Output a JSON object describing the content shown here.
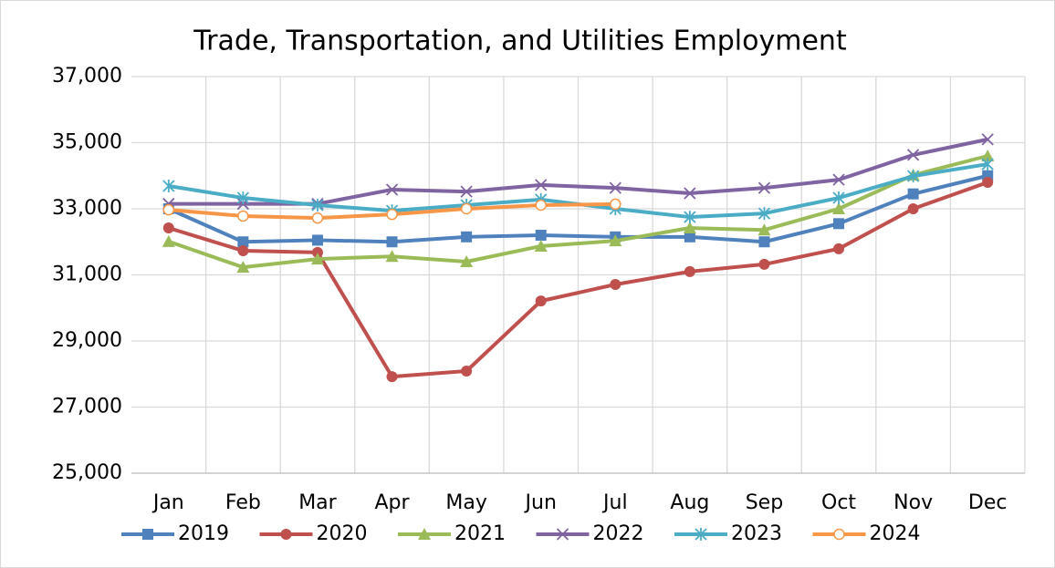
{
  "chart_data": {
    "type": "line",
    "title": "Trade, Transportation, and Utilities Employment",
    "categories": [
      "Jan",
      "Feb",
      "Mar",
      "Apr",
      "May",
      "Jun",
      "Jul",
      "Aug",
      "Sep",
      "Oct",
      "Nov",
      "Dec"
    ],
    "series": [
      {
        "name": "2019",
        "color": "#4f81bd",
        "marker": "square",
        "values": [
          33000,
          32000,
          32050,
          32000,
          32150,
          32200,
          32150,
          32150,
          32000,
          32550,
          33450,
          34000
        ]
      },
      {
        "name": "2020",
        "color": "#c0504d",
        "marker": "circle",
        "values": [
          32420,
          31730,
          31680,
          27920,
          28090,
          30210,
          30710,
          31100,
          31320,
          31790,
          33000,
          33800
        ]
      },
      {
        "name": "2021",
        "color": "#9bbb59",
        "marker": "triangle",
        "values": [
          32010,
          31230,
          31480,
          31560,
          31400,
          31870,
          32030,
          32420,
          32360,
          33000,
          34020,
          34600
        ]
      },
      {
        "name": "2022",
        "color": "#8064a2",
        "marker": "x",
        "values": [
          33150,
          33150,
          33150,
          33580,
          33520,
          33720,
          33630,
          33470,
          33630,
          33880,
          34630,
          35100
        ]
      },
      {
        "name": "2023",
        "color": "#4bacc6",
        "marker": "star",
        "values": [
          33690,
          33330,
          33110,
          32940,
          33110,
          33280,
          33000,
          32750,
          32860,
          33330,
          33990,
          34350
        ]
      },
      {
        "name": "2024",
        "color": "#f79646",
        "marker": "open-circle",
        "values": [
          32970,
          32780,
          32720,
          32830,
          33000,
          33110,
          33140,
          null,
          null,
          null,
          null,
          null
        ]
      }
    ],
    "ylim": [
      25000,
      37000
    ],
    "yticks": [
      {
        "value": 25000,
        "label": "25,000"
      },
      {
        "value": 27000,
        "label": "27,000"
      },
      {
        "value": 29000,
        "label": "29,000"
      },
      {
        "value": 31000,
        "label": "31,000"
      },
      {
        "value": 33000,
        "label": "33,000"
      },
      {
        "value": 35000,
        "label": "35,000"
      },
      {
        "value": 37000,
        "label": "37,000"
      }
    ],
    "grid": true,
    "legend": "bottom"
  }
}
